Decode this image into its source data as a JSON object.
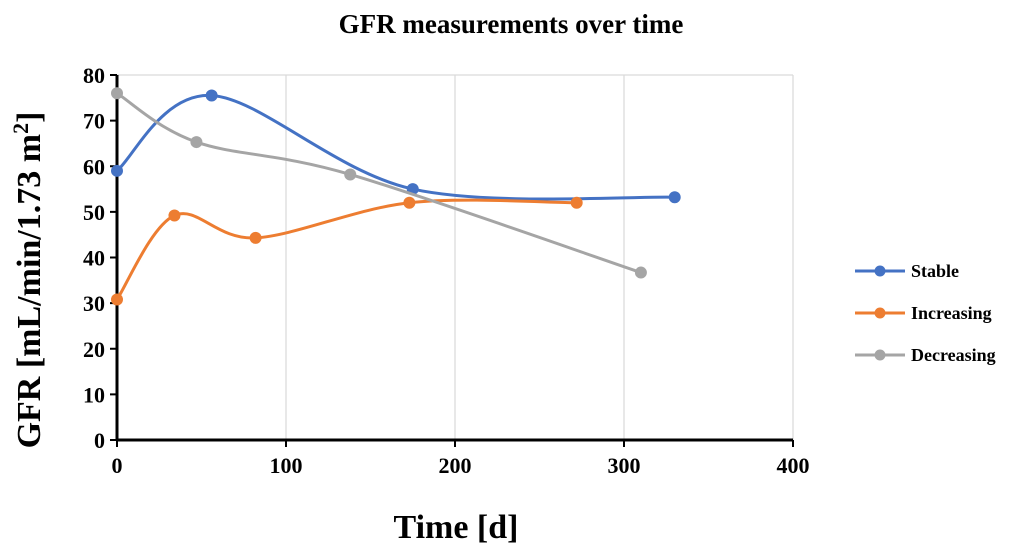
{
  "chart_data": {
    "type": "line",
    "title": "GFR measurements over time",
    "xlabel": "Time [d]",
    "ylabel_main": "GFR [mL/min/1.73 m",
    "ylabel_sup": "2",
    "ylabel_close": "]",
    "xlim": [
      0,
      400
    ],
    "ylim": [
      0,
      80
    ],
    "xticks": [
      0,
      100,
      200,
      300,
      400
    ],
    "yticks": [
      0,
      10,
      20,
      30,
      40,
      50,
      60,
      70,
      80
    ],
    "grid": "vertical",
    "smooth": true,
    "legend_position": "right",
    "series": [
      {
        "name": "Stable",
        "color": "#4472C4",
        "points": [
          [
            0,
            59
          ],
          [
            56,
            75.5
          ],
          [
            175,
            55
          ],
          [
            330,
            53.2
          ]
        ]
      },
      {
        "name": "Increasing",
        "color": "#ED7D31",
        "points": [
          [
            0,
            30.8
          ],
          [
            34,
            49.2
          ],
          [
            82,
            44.3
          ],
          [
            173,
            52
          ],
          [
            272,
            52
          ]
        ]
      },
      {
        "name": "Decreasing",
        "color": "#A5A5A5",
        "points": [
          [
            0,
            76
          ],
          [
            47,
            65.3
          ],
          [
            138,
            58.2
          ],
          [
            310,
            36.7
          ]
        ]
      }
    ]
  }
}
